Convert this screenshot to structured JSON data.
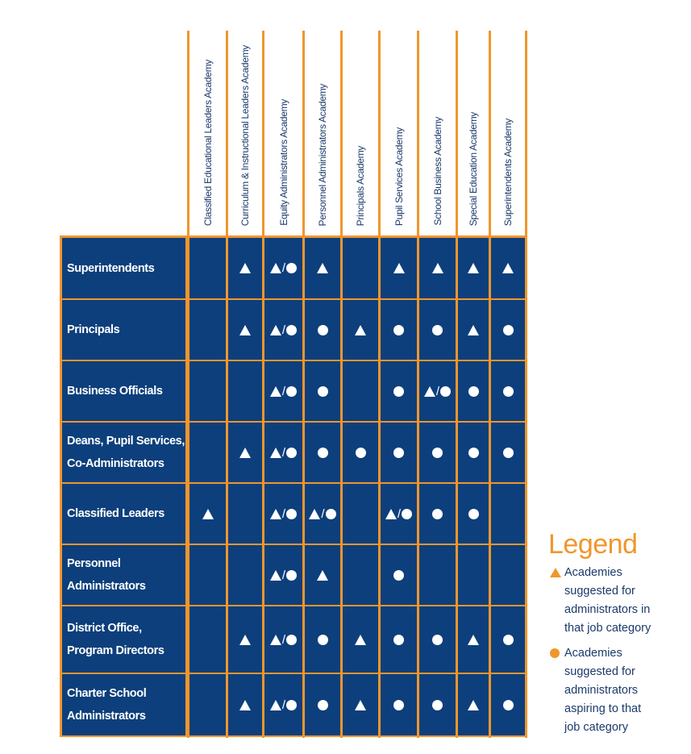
{
  "colors": {
    "navy": "#0d3f7c",
    "orange": "#f0962c",
    "separator": "#8aa0c0",
    "text": "#1b3a6b"
  },
  "columns": [
    "Classified Educational Leaders Academy",
    "Curriculum & Instructional Leaders Academy",
    "Equity Administrators Academy",
    "Personnel Administrators Academy",
    "Principals Academy",
    "Pupil Services Academy",
    "School Business Academy",
    "Special Education Academy",
    "Superintendents Academy"
  ],
  "rows": [
    {
      "label": "Superintendents",
      "cells": [
        "",
        "tri",
        "both",
        "tri",
        "",
        "tri",
        "tri",
        "tri",
        "tri"
      ]
    },
    {
      "label": "Principals",
      "cells": [
        "",
        "tri",
        "both",
        "dot",
        "tri",
        "dot",
        "dot",
        "tri",
        "dot"
      ]
    },
    {
      "label": "Business Officials",
      "cells": [
        "",
        "",
        "both",
        "dot",
        "",
        "dot",
        "both",
        "dot",
        "dot"
      ]
    },
    {
      "label": "Deans, Pupil Services,\nCo-Administrators",
      "cells": [
        "",
        "tri",
        "both",
        "dot",
        "dot",
        "dot",
        "dot",
        "dot",
        "dot"
      ]
    },
    {
      "label": "Classified Leaders",
      "cells": [
        "tri",
        "",
        "both",
        "both",
        "",
        "both",
        "dot",
        "dot",
        ""
      ]
    },
    {
      "label": "Personnel Administrators",
      "cells": [
        "",
        "",
        "both",
        "tri",
        "",
        "dot",
        "",
        "",
        ""
      ]
    },
    {
      "label": "District Office,\nProgram Directors",
      "cells": [
        "",
        "tri",
        "both",
        "dot",
        "tri",
        "dot",
        "dot",
        "tri",
        "dot"
      ]
    },
    {
      "label": "Charter School\nAdministrators",
      "cells": [
        "",
        "tri",
        "both",
        "dot",
        "tri",
        "dot",
        "dot",
        "tri",
        "dot"
      ]
    }
  ],
  "mark_icons": {
    "tri": "triangle-icon",
    "dot": "circle-icon",
    "both": "triangle-slash-circle-icon"
  },
  "slash_glyph": "/",
  "legend": {
    "title": "Legend",
    "items": [
      {
        "icon": "triangle-icon",
        "text": "Academies\nsuggested for\nadministrators in\nthat job category"
      },
      {
        "icon": "circle-icon",
        "text": "Academies\nsuggested for\nadministrators\naspiring to that\njob category"
      }
    ]
  }
}
